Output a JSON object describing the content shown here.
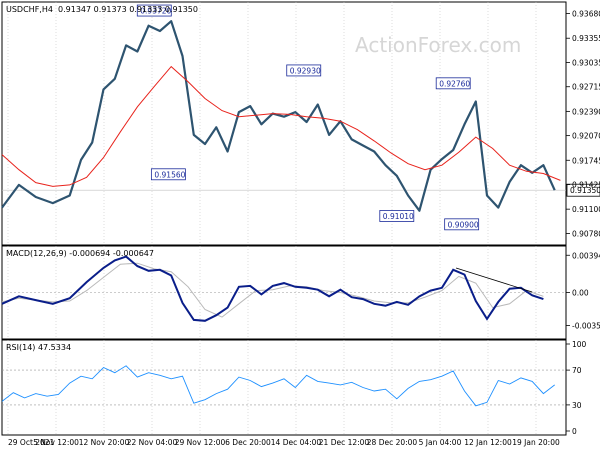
{
  "header": {
    "symbol": "USDCHF,H4",
    "quotes": "0.91347 0.91373 0.91333 0.91350"
  },
  "watermark": "ActionForex.com",
  "colors": {
    "price": "#2e5470",
    "ma": "#e8231c",
    "macd": "#0a1e8a",
    "signal": "#b9b9b9",
    "rsi": "#1e90ff",
    "label_border": "#1a2a9a",
    "label_text": "#1a2a9a",
    "grid": "#c8c8c8",
    "current_price_line": "#c0c0c0"
  },
  "chart_data": [
    {
      "type": "line",
      "panel": "price",
      "title": "USDCHF,H4",
      "y_ticks": [
        "0.93680",
        "0.93355",
        "0.93035",
        "0.92715",
        "0.92390",
        "0.92070",
        "0.91745",
        "0.91425",
        "0.91100",
        "0.90780"
      ],
      "ylim": [
        0.9068,
        0.9378
      ],
      "current_price": "0.91350",
      "x_ticks": [
        "29 Oct 2021",
        "5 Nov 12:00",
        "12 Nov 20:00",
        "22 Nov 04:00",
        "29 Nov 12:00",
        "6 Dec 20:00",
        "14 Dec 04:00",
        "21 Dec 12:00",
        "28 Dec 20:00",
        "5 Jan 04:00",
        "12 Jan 12:00",
        "19 Jan 20:00"
      ],
      "x_index_range": [
        0,
        100
      ],
      "annotations": [
        {
          "text": "0.93720",
          "x": 27,
          "y": 0.9372
        },
        {
          "text": "0.92930",
          "x": 53.5,
          "y": 0.9293
        },
        {
          "text": "0.91560",
          "x": 29.5,
          "y": 0.9156
        },
        {
          "text": "0.92760",
          "x": 80,
          "y": 0.9276
        },
        {
          "text": "0.91010",
          "x": 70,
          "y": 0.9101
        },
        {
          "text": "0.90900",
          "x": 81.5,
          "y": 0.909
        }
      ],
      "series": [
        {
          "name": "",
          "x": [
            0,
            3,
            6,
            9,
            12,
            14,
            16,
            18,
            20,
            22,
            24,
            26,
            28,
            30,
            32,
            34,
            36,
            38,
            40,
            42,
            44,
            46,
            48,
            50,
            52,
            54,
            56,
            58,
            60,
            62,
            64,
            66,
            68,
            70,
            72,
            74,
            76,
            78,
            80,
            82,
            84,
            86,
            88,
            90,
            92,
            94,
            96,
            98
          ],
          "values": [
            0.9112,
            0.9142,
            0.9126,
            0.9118,
            0.9128,
            0.9175,
            0.9198,
            0.9268,
            0.9282,
            0.9326,
            0.9318,
            0.9352,
            0.9345,
            0.9358,
            0.9312,
            0.9208,
            0.9196,
            0.9218,
            0.9186,
            0.9238,
            0.9246,
            0.9222,
            0.9236,
            0.9232,
            0.9238,
            0.9225,
            0.9248,
            0.9208,
            0.9226,
            0.9202,
            0.9194,
            0.9186,
            0.9168,
            0.9154,
            0.9128,
            0.9108,
            0.9162,
            0.9176,
            0.9188,
            0.9222,
            0.9252,
            0.9128,
            0.9112,
            0.9146,
            0.9168,
            0.9158,
            0.9168,
            0.9135
          ]
        },
        {
          "name": "",
          "x": [
            0,
            3,
            6,
            9,
            12,
            15,
            18,
            21,
            24,
            27,
            30,
            33,
            36,
            39,
            42,
            45,
            48,
            51,
            54,
            57,
            60,
            63,
            66,
            69,
            72,
            75,
            78,
            81,
            84,
            87,
            90,
            93,
            96,
            99
          ],
          "values": [
            0.9182,
            0.9162,
            0.9145,
            0.914,
            0.9142,
            0.9152,
            0.9178,
            0.9212,
            0.9245,
            0.9272,
            0.9298,
            0.9278,
            0.9256,
            0.924,
            0.9232,
            0.9234,
            0.9236,
            0.9235,
            0.9232,
            0.923,
            0.9226,
            0.9215,
            0.92,
            0.9184,
            0.917,
            0.9162,
            0.9168,
            0.9185,
            0.9205,
            0.919,
            0.9168,
            0.916,
            0.9157,
            0.9148
          ]
        }
      ]
    },
    {
      "type": "line",
      "panel": "macd",
      "title": "MACD(12,26,9) -0.000694 -0.000647",
      "y_ticks": [
        "0.003944",
        "0.00",
        "-0.003506"
      ],
      "ylim": [
        -0.0045,
        0.0045
      ],
      "x_index_range": [
        0,
        100
      ],
      "trendline": {
        "x": [
          80.5,
          94
        ],
        "values": [
          0.0026,
          5e-05
        ]
      },
      "series": [
        {
          "name": "",
          "x": [
            0,
            3,
            6,
            9,
            12,
            15,
            18,
            20,
            22,
            24,
            26,
            28,
            30,
            32,
            34,
            36,
            38,
            40,
            42,
            44,
            46,
            48,
            50,
            52,
            54,
            56,
            58,
            60,
            62,
            64,
            66,
            68,
            70,
            72,
            74,
            76,
            78,
            80,
            82,
            84,
            86,
            88,
            90,
            92,
            94,
            96
          ],
          "values": [
            -0.0012,
            -0.0004,
            -0.0008,
            -0.0012,
            -0.0006,
            0.0011,
            0.0026,
            0.0034,
            0.0038,
            0.0028,
            0.0023,
            0.0024,
            0.0018,
            -0.0011,
            -0.0029,
            -0.003,
            -0.0024,
            -0.0016,
            0.0006,
            0.0007,
            -0.0002,
            0.0007,
            0.001,
            0.0006,
            0.0005,
            0.0003,
            -0.0004,
            0.0003,
            -0.0005,
            -0.0007,
            -0.0012,
            -0.0014,
            -0.001,
            -0.0013,
            -0.0004,
            0.0002,
            0.0005,
            0.0024,
            0.0019,
            -0.0009,
            -0.0028,
            -0.001,
            0.0004,
            0.0005,
            -0.0003,
            -0.0007
          ]
        },
        {
          "name": "",
          "x": [
            0,
            3,
            6,
            9,
            12,
            15,
            18,
            21,
            24,
            27,
            30,
            33,
            36,
            39,
            42,
            45,
            48,
            51,
            54,
            57,
            60,
            63,
            66,
            69,
            72,
            75,
            78,
            81,
            84,
            87,
            90,
            93,
            96
          ],
          "values": [
            -0.001,
            -0.0006,
            -0.0008,
            -0.001,
            -0.0009,
            0.0002,
            0.0016,
            0.003,
            0.0031,
            0.0025,
            0.0022,
            0.0006,
            -0.0018,
            -0.0026,
            -0.0012,
            0.0002,
            0.0003,
            0.0007,
            0.0006,
            0.0002,
            0.0,
            -0.0004,
            -0.0009,
            -0.0011,
            -0.0011,
            -0.0005,
            0.0002,
            0.0017,
            0.001,
            -0.0016,
            -0.0012,
            0.0002,
            -0.0004
          ]
        }
      ]
    },
    {
      "type": "line",
      "panel": "rsi",
      "title": "RSI(14) 47.5334",
      "y_ticks": [
        "100",
        "70",
        "30",
        "0"
      ],
      "ylim": [
        0,
        100
      ],
      "x_index_range": [
        0,
        100
      ],
      "series": [
        {
          "name": "",
          "x": [
            0,
            2,
            4,
            6,
            8,
            10,
            12,
            14,
            16,
            18,
            20,
            22,
            24,
            26,
            28,
            30,
            32,
            34,
            36,
            38,
            40,
            42,
            44,
            46,
            48,
            50,
            52,
            54,
            56,
            58,
            60,
            62,
            64,
            66,
            68,
            70,
            72,
            74,
            76,
            78,
            80,
            82,
            84,
            86,
            88,
            90,
            92,
            94,
            96,
            98
          ],
          "values": [
            34,
            44,
            38,
            43,
            40,
            42,
            55,
            63,
            60,
            73,
            67,
            75,
            62,
            67,
            64,
            60,
            63,
            32,
            36,
            43,
            48,
            62,
            58,
            51,
            55,
            60,
            50,
            64,
            57,
            55,
            53,
            56,
            50,
            46,
            48,
            37,
            49,
            57,
            59,
            63,
            69,
            46,
            29,
            33,
            58,
            54,
            61,
            57,
            43,
            53
          ]
        }
      ]
    }
  ]
}
